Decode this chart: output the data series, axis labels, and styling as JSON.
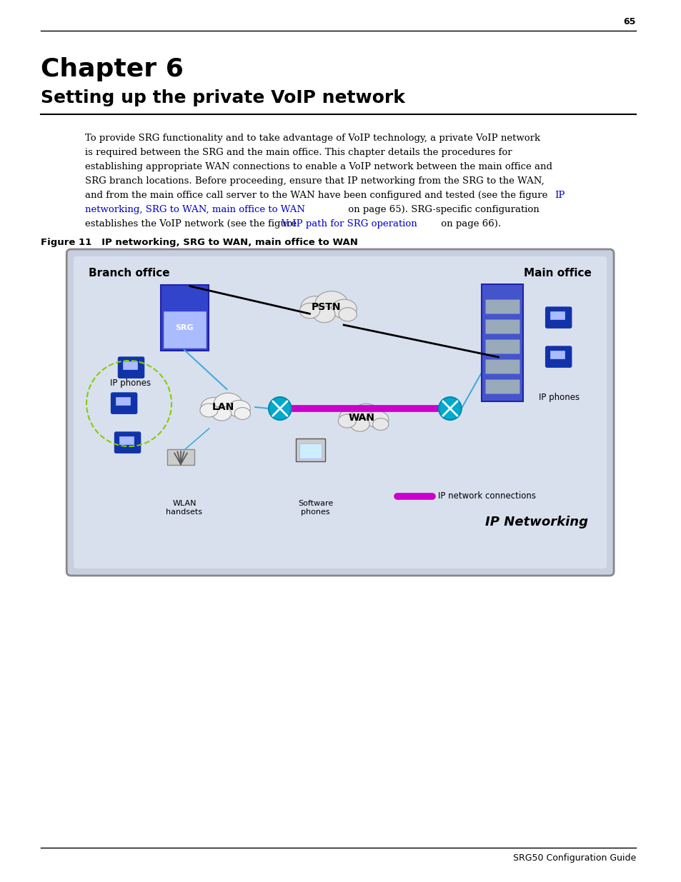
{
  "page_number": "65",
  "chapter_title": "Chapter 6",
  "chapter_subtitle": "Setting up the private VoIP network",
  "body_text_lines": [
    "To provide SRG functionality and to take advantage of VoIP technology, a private VoIP network",
    "is required between the SRG and the main office. This chapter details the procedures for",
    "establishing appropriate WAN connections to enable a VoIP network between the main office and",
    "SRG branch locations. Before proceeding, ensure that IP networking from the SRG to the WAN,",
    "and from the main office call server to the WAN have been configured and tested (see the figure ",
    "networking, SRG to WAN, main office to WAN on page 65). SRG-specific configuration",
    "establishes the VoIP network (see the figure VoIP path for SRG operation on page 66)."
  ],
  "figure_caption": "Figure 11   IP networking, SRG to WAN, main office to WAN",
  "footer_text": "SRG50 Configuration Guide",
  "link_color": "#0000CD",
  "text_color": "#000000",
  "bg_color": "#ffffff",
  "diagram_bg": "#d0d8e8",
  "diagram_inner_bg": "#dde4f0"
}
